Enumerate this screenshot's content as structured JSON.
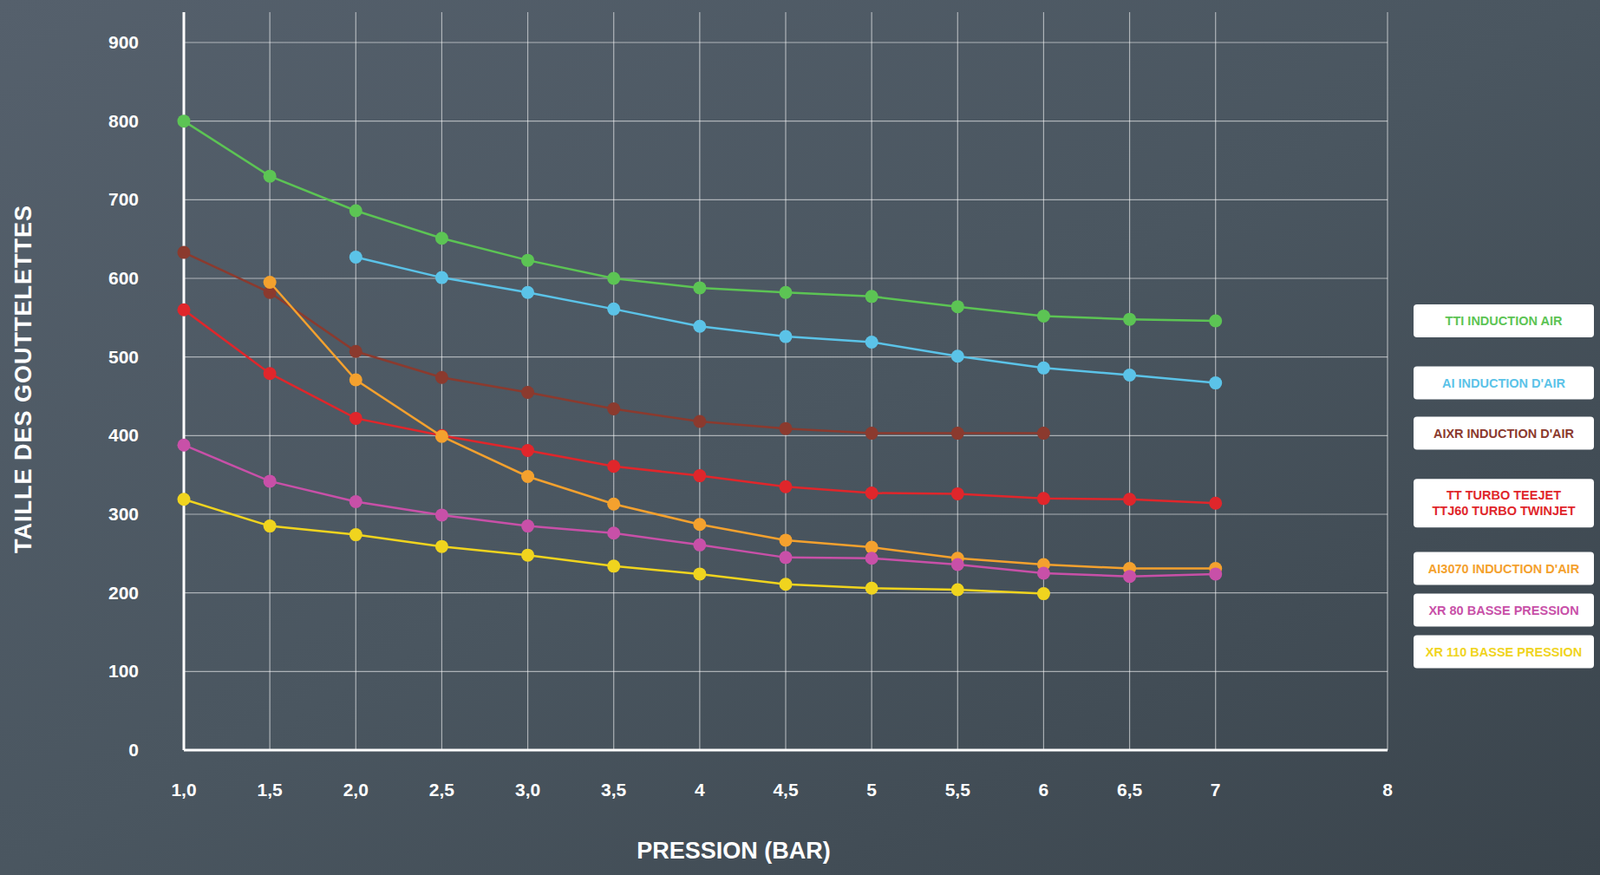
{
  "chart_data": {
    "type": "line",
    "x_label": "PRESSION (BAR)",
    "y_label": "TAILLE DES GOUTTELETTES",
    "x": [
      1,
      1.5,
      2,
      2.5,
      3,
      3.5,
      4,
      4.5,
      5,
      5.5,
      6,
      6.5,
      7
    ],
    "xlim": [
      1,
      8
    ],
    "xticks": [
      {
        "value": 1,
        "label": "1,0"
      },
      {
        "value": 1.5,
        "label": "1,5"
      },
      {
        "value": 2,
        "label": "2,0"
      },
      {
        "value": 2.5,
        "label": "2,5"
      },
      {
        "value": 3,
        "label": "3,0"
      },
      {
        "value": 3.5,
        "label": "3,5"
      },
      4,
      {
        "value": 4.5,
        "label": "4,5"
      },
      5,
      {
        "value": 5.5,
        "label": "5,5"
      },
      6,
      {
        "value": 6.5,
        "label": "6,5"
      },
      7,
      8
    ],
    "ylim": [
      0,
      900
    ],
    "yticks": [
      0,
      100,
      200,
      300,
      400,
      500,
      600,
      700,
      800,
      900
    ],
    "grid": true,
    "legend": "right",
    "marker": "circle",
    "line_style": "solid",
    "series": [
      {
        "name": "TTI INDUCTION AIR",
        "color": "#5cc454",
        "values": [
          800,
          730,
          686,
          651,
          623,
          600,
          588,
          582,
          577,
          564,
          552,
          548,
          546
        ]
      },
      {
        "name": "AI INDUCTION D'AIR",
        "color": "#5bc3e8",
        "values": [
          null,
          null,
          627,
          601,
          582,
          561,
          539,
          526,
          519,
          501,
          486,
          477,
          467
        ]
      },
      {
        "name": "AIXR INDUCTION D'AIR",
        "color": "#8b3a2e",
        "values": [
          633,
          582,
          507,
          474,
          455,
          434,
          418,
          409,
          403,
          403,
          403,
          null,
          null
        ]
      },
      {
        "name": "TT TURBO TEEJET\nTTJ60 TURBO TWINJET",
        "color": "#e0262b",
        "values": [
          560,
          479,
          422,
          400,
          381,
          361,
          349,
          335,
          327,
          326,
          320,
          319,
          314
        ]
      },
      {
        "name": "AI3070 INDUCTION D'AIR",
        "color": "#f4a12e",
        "values": [
          null,
          595,
          471,
          399,
          348,
          313,
          287,
          267,
          258,
          244,
          236,
          231,
          231
        ]
      },
      {
        "name": "XR 80 BASSE PRESSION",
        "color": "#c850a8",
        "values": [
          388,
          342,
          316,
          299,
          285,
          276,
          261,
          245,
          244,
          236,
          225,
          221,
          224
        ]
      },
      {
        "name": "XR 110 BASSE PRESSION",
        "color": "#f0d41e",
        "values": [
          319,
          285,
          274,
          259,
          248,
          234,
          224,
          211,
          206,
          204,
          199,
          null,
          null
        ]
      }
    ]
  }
}
